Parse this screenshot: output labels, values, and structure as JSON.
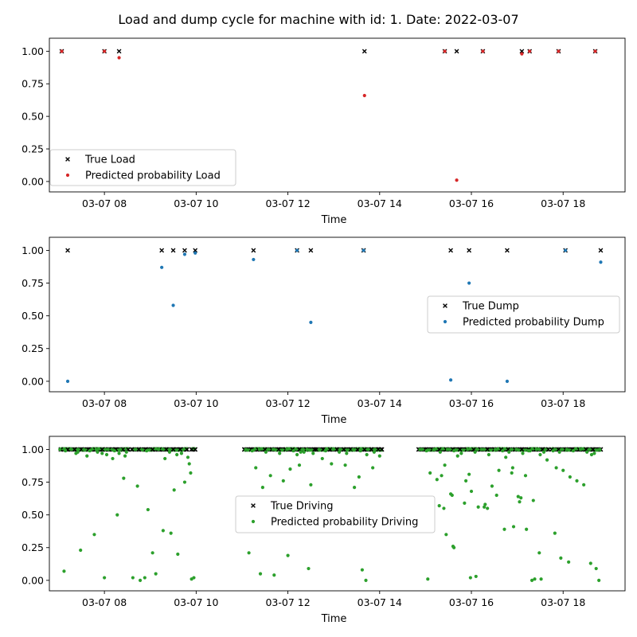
{
  "figure": {
    "title": "Load and dump cycle for machine with id: 1. Date: 2022-03-07"
  },
  "chart_data": [
    {
      "type": "scatter",
      "xlabel": "Time",
      "x_ticks": [
        "03-07 08",
        "03-07 10",
        "03-07 12",
        "03-07 14",
        "03-07 16",
        "03-07 18"
      ],
      "xlim": [
        6.8,
        19.35
      ],
      "ylim": [
        -0.08,
        1.1
      ],
      "y_ticks": [
        "0.00",
        "0.25",
        "0.50",
        "0.75",
        "1.00"
      ],
      "legend_position": "lower-left",
      "series": [
        {
          "name": "True Load",
          "marker": "x",
          "color": "#000000",
          "x": [
            7.07,
            8.0,
            8.32,
            13.67,
            15.42,
            15.68,
            16.25,
            17.1,
            17.27,
            17.9,
            18.7
          ],
          "y": [
            1,
            1,
            1,
            1,
            1,
            1,
            1,
            1,
            1,
            1,
            1
          ]
        },
        {
          "name": "Predicted probability Load",
          "marker": "dot",
          "color": "#d62728",
          "x": [
            7.07,
            8.0,
            8.32,
            13.67,
            15.42,
            15.68,
            16.25,
            17.1,
            17.27,
            17.9,
            18.7
          ],
          "y": [
            1.0,
            1.0,
            0.95,
            0.66,
            1.0,
            0.01,
            1.0,
            0.98,
            1.0,
            1.0,
            1.0
          ]
        }
      ]
    },
    {
      "type": "scatter",
      "xlabel": "Time",
      "x_ticks": [
        "03-07 08",
        "03-07 10",
        "03-07 12",
        "03-07 14",
        "03-07 16",
        "03-07 18"
      ],
      "xlim": [
        6.8,
        19.35
      ],
      "ylim": [
        -0.08,
        1.1
      ],
      "y_ticks": [
        "0.00",
        "0.25",
        "0.50",
        "0.75",
        "1.00"
      ],
      "legend_position": "center-right",
      "series": [
        {
          "name": "True Dump",
          "marker": "x",
          "color": "#000000",
          "x": [
            7.2,
            9.25,
            9.5,
            9.75,
            9.98,
            11.25,
            12.2,
            12.5,
            13.65,
            15.55,
            15.95,
            16.78,
            18.05,
            18.82
          ],
          "y": [
            1,
            1,
            1,
            1,
            1,
            1,
            1,
            1,
            1,
            1,
            1,
            1,
            1,
            1
          ]
        },
        {
          "name": "Predicted probability Dump",
          "marker": "dot",
          "color": "#1f77b4",
          "x": [
            7.2,
            9.25,
            9.5,
            9.75,
            9.98,
            11.25,
            12.2,
            12.5,
            13.65,
            15.55,
            15.95,
            16.78,
            18.05,
            18.82
          ],
          "y": [
            0.0,
            0.87,
            0.58,
            0.97,
            0.98,
            0.93,
            1.0,
            0.45,
            1.0,
            0.01,
            0.75,
            0.0,
            1.0,
            0.91
          ]
        }
      ]
    },
    {
      "type": "scatter",
      "xlabel": "Time",
      "x_ticks": [
        "03-07 08",
        "03-07 10",
        "03-07 12",
        "03-07 14",
        "03-07 16",
        "03-07 18"
      ],
      "xlim": [
        6.8,
        19.35
      ],
      "ylim": [
        -0.08,
        1.1
      ],
      "y_ticks": [
        "0.00",
        "0.25",
        "0.50",
        "0.75",
        "1.00"
      ],
      "legend_position": "center",
      "driving_segments": [
        [
          7.05,
          8.52
        ],
        [
          8.6,
          9.8
        ],
        [
          9.9,
          9.98
        ],
        [
          11.05,
          12.58
        ],
        [
          12.62,
          14.05
        ],
        [
          14.85,
          17.68
        ],
        [
          17.75,
          18.82
        ]
      ],
      "series": [
        {
          "name": "True Driving",
          "marker": "x",
          "color": "#000000",
          "x": [
            7.05,
            7.2,
            7.35,
            7.5,
            7.65,
            7.8,
            7.95,
            8.1,
            8.25,
            8.4,
            8.52,
            8.6,
            8.75,
            8.9,
            9.05,
            9.2,
            9.35,
            9.5,
            9.65,
            9.8,
            9.9,
            9.98,
            11.05,
            11.2,
            11.35,
            11.5,
            11.65,
            11.8,
            11.95,
            12.1,
            12.25,
            12.4,
            12.58,
            12.62,
            12.77,
            12.92,
            13.07,
            13.22,
            13.37,
            13.52,
            13.67,
            13.82,
            13.97,
            14.05,
            14.85,
            15.0,
            15.15,
            15.3,
            15.45,
            15.6,
            15.75,
            15.9,
            16.05,
            16.2,
            16.35,
            16.5,
            16.65,
            16.8,
            16.95,
            17.1,
            17.25,
            17.4,
            17.55,
            17.68,
            17.75,
            17.9,
            18.05,
            18.2,
            18.35,
            18.5,
            18.65,
            18.82
          ],
          "y": [
            1,
            1,
            1,
            1,
            1,
            1,
            1,
            1,
            1,
            1,
            1,
            1,
            1,
            1,
            1,
            1,
            1,
            1,
            1,
            1,
            1,
            1,
            1,
            1,
            1,
            1,
            1,
            1,
            1,
            1,
            1,
            1,
            1,
            1,
            1,
            1,
            1,
            1,
            1,
            1,
            1,
            1,
            1,
            1,
            1,
            1,
            1,
            1,
            1,
            1,
            1,
            1,
            1,
            1,
            1,
            1,
            1,
            1,
            1,
            1,
            1,
            1,
            1,
            1,
            1,
            1,
            1,
            1,
            1,
            1,
            1,
            1
          ]
        },
        {
          "name": "Predicted probability Driving",
          "marker": "dot",
          "color": "#2ca02c",
          "x": [
            7.03,
            7.15,
            7.28,
            7.42,
            7.55,
            7.68,
            7.82,
            7.95,
            8.08,
            8.22,
            8.35,
            8.48,
            7.38,
            7.62,
            7.85,
            8.05,
            8.18,
            8.32,
            8.45,
            7.12,
            7.48,
            7.78,
            8.0,
            8.28,
            8.42,
            8.62,
            8.78,
            8.95,
            9.12,
            9.28,
            9.45,
            9.6,
            9.75,
            9.88,
            8.72,
            8.88,
            9.05,
            9.32,
            9.52,
            9.68,
            9.85,
            8.68,
            8.92,
            9.18,
            9.42,
            9.58,
            9.82,
            9.9,
            9.95,
            11.08,
            11.22,
            11.38,
            11.52,
            11.68,
            11.82,
            11.98,
            12.12,
            12.28,
            12.42,
            12.55,
            11.3,
            11.45,
            11.62,
            11.78,
            11.9,
            12.05,
            12.2,
            12.35,
            12.5,
            11.15,
            11.4,
            11.7,
            12.0,
            12.25,
            12.45,
            12.68,
            12.82,
            12.98,
            13.12,
            13.28,
            13.42,
            13.58,
            13.72,
            13.88,
            14.0,
            12.75,
            12.95,
            13.25,
            13.55,
            13.85,
            13.45,
            13.62,
            13.7,
            14.88,
            15.02,
            15.18,
            15.32,
            15.48,
            15.62,
            15.78,
            15.92,
            16.08,
            16.22,
            16.38,
            16.52,
            16.68,
            16.82,
            16.98,
            17.12,
            17.28,
            17.42,
            17.58,
            15.1,
            15.25,
            15.4,
            15.55,
            15.7,
            15.85,
            16.0,
            16.15,
            16.3,
            16.45,
            16.6,
            16.75,
            16.9,
            17.05,
            17.2,
            17.35,
            17.5,
            17.65,
            15.05,
            15.3,
            15.45,
            15.6,
            15.88,
            16.1,
            16.28,
            16.55,
            16.72,
            16.92,
            17.08,
            17.25,
            17.48,
            15.42,
            15.58,
            15.95,
            16.35,
            16.88,
            17.18,
            17.38,
            15.35,
            15.62,
            15.98,
            17.02,
            17.32,
            17.52,
            17.78,
            17.92,
            18.08,
            18.22,
            18.38,
            18.52,
            18.68,
            18.8,
            17.85,
            18.0,
            18.15,
            18.3,
            18.45,
            18.62,
            17.82,
            17.95,
            18.12,
            18.6,
            18.72,
            18.78
          ],
          "y": [
            1.0,
            0.99,
            1.0,
            0.98,
            1.0,
            0.99,
            1.0,
            0.97,
            1.0,
            0.99,
            1.0,
            0.98,
            0.97,
            0.95,
            0.98,
            0.96,
            0.93,
            0.97,
            0.95,
            0.07,
            0.23,
            0.35,
            0.02,
            0.5,
            0.78,
            0.02,
            0.0,
            0.54,
            0.05,
            0.38,
            0.36,
            0.2,
            0.75,
            0.82,
            0.72,
            0.02,
            0.21,
            0.93,
            0.69,
            0.97,
            0.89,
            1.0,
            0.99,
            1.0,
            0.98,
            0.96,
            0.94,
            0.01,
            0.02,
            1.0,
            0.99,
            1.0,
            0.98,
            1.0,
            0.97,
            1.0,
            0.99,
            0.98,
            1.0,
            0.97,
            0.86,
            0.71,
            0.8,
            0.55,
            0.76,
            0.85,
            0.96,
            0.98,
            0.73,
            0.21,
            0.05,
            0.04,
            0.19,
            0.88,
            0.09,
            1.0,
            0.99,
            1.0,
            0.98,
            0.97,
            1.0,
            0.99,
            0.96,
            0.98,
            0.95,
            0.93,
            0.89,
            0.88,
            0.79,
            0.86,
            0.71,
            0.08,
            0.0,
            1.0,
            0.99,
            1.0,
            0.98,
            1.0,
            0.99,
            0.97,
            1.0,
            0.98,
            1.0,
            0.96,
            1.0,
            0.99,
            0.98,
            1.0,
            0.97,
            0.99,
            1.0,
            0.98,
            0.82,
            0.77,
            0.55,
            0.66,
            0.95,
            0.59,
            0.68,
            0.56,
            0.58,
            0.72,
            0.84,
            0.94,
            0.86,
            0.6,
            0.39,
            0.61,
            0.96,
            0.92,
            0.01,
            0.57,
            0.35,
            0.26,
            0.76,
            0.03,
            0.56,
            0.65,
            0.39,
            0.41,
            0.63,
            0.99,
            0.21,
            0.88,
            0.65,
            0.81,
            0.55,
            0.82,
            0.8,
            0.01,
            0.8,
            0.25,
            0.02,
            0.64,
            0.0,
            0.01,
            0.99,
            0.98,
            1.0,
            0.99,
            1.0,
            0.98,
            0.97,
            1.0,
            0.86,
            0.84,
            0.79,
            0.76,
            0.73,
            0.96,
            0.36,
            0.17,
            0.14,
            0.13,
            0.09,
            0.0
          ]
        }
      ]
    }
  ]
}
